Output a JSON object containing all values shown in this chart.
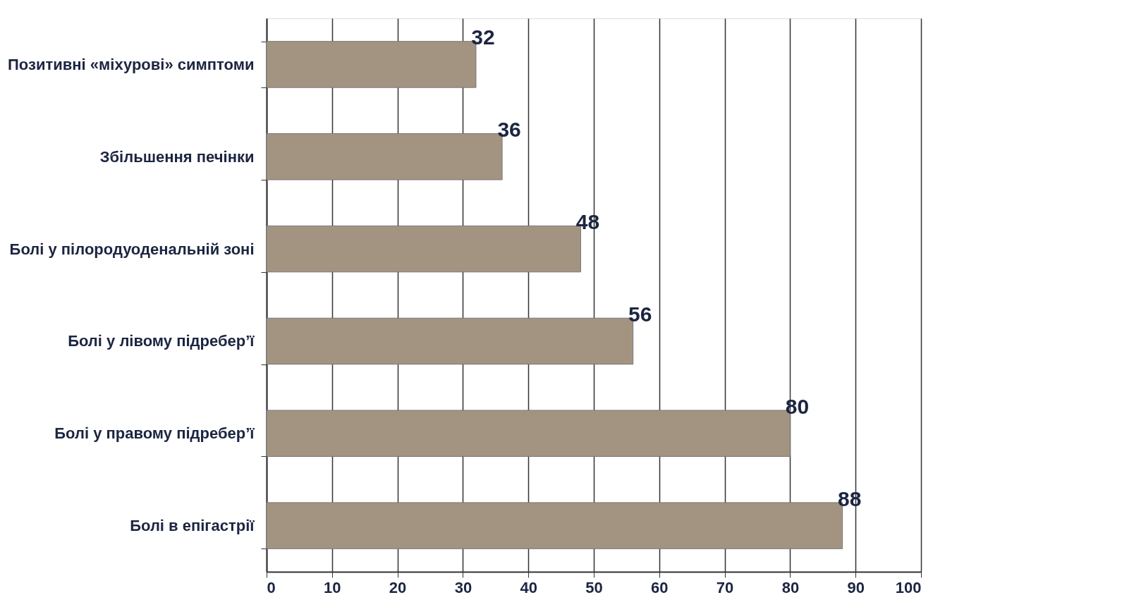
{
  "chart_data": {
    "type": "bar",
    "orientation": "horizontal",
    "categories": [
      "Позитивні «міхурові» симптоми",
      "Збільшення печінки",
      "Болі у пілородуоденальній зоні",
      "Болі у лівому підребер’ї",
      "Болі у правому підребер’ї",
      "Болі в епігастрії"
    ],
    "values": [
      32,
      36,
      48,
      56,
      80,
      88
    ],
    "color": "#a39482",
    "xlim": [
      0,
      100
    ],
    "xticks": [
      0,
      10,
      20,
      30,
      40,
      50,
      60,
      70,
      80,
      90,
      100
    ],
    "grid": "x",
    "data_labels": true
  }
}
